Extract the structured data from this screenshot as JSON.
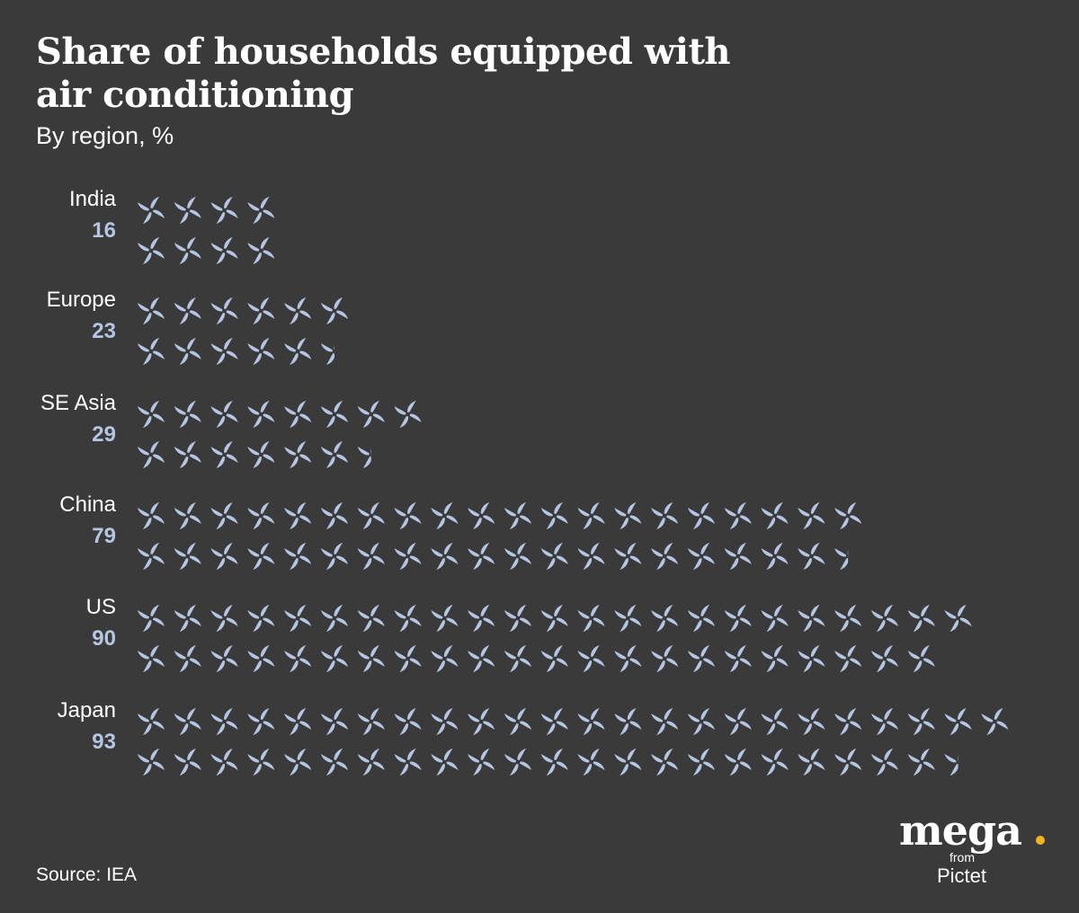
{
  "chart_data": {
    "type": "bar",
    "title": "Share of households equipped with air conditioning",
    "subtitle": "By region, %",
    "categories": [
      "India",
      "Europe",
      "SE Asia",
      "China",
      "US",
      "Japan"
    ],
    "values": [
      16,
      23,
      29,
      79,
      90,
      93
    ],
    "unit": "%",
    "icon": "fan-icon",
    "icon_value": 2,
    "colors": {
      "background": "#3a3a3b",
      "icon": "#b5c6e2",
      "value_text": "#b5c6e2",
      "accent": "#f2b21b"
    }
  },
  "source": "Source: IEA",
  "logo": {
    "word": "mega",
    "from": "from",
    "sub": "Pictet"
  }
}
